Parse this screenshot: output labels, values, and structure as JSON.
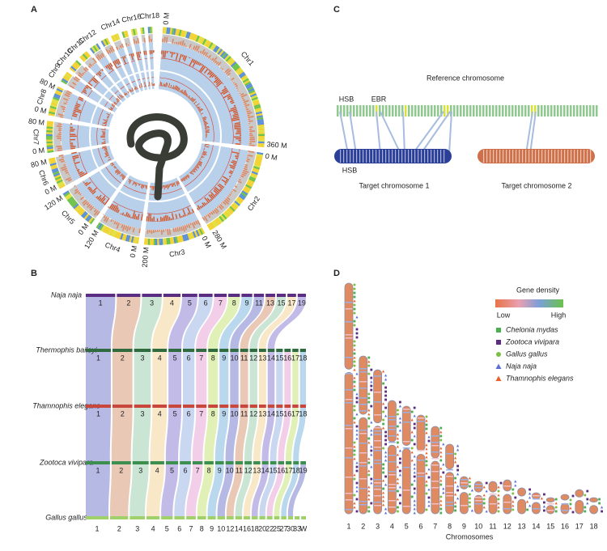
{
  "panel_labels": [
    "A",
    "B",
    "C",
    "D"
  ],
  "circos": {
    "chromosomes": [
      "Chr1",
      "Chr2",
      "Chr3",
      "Chr4",
      "Chr5",
      "Chr6",
      "Chr7",
      "Chr8",
      "Chr9",
      "Chr10",
      "Chr11",
      "Chr12",
      "Chr14",
      "Chr16",
      "Chr18"
    ],
    "ticks": [
      "0 M",
      "360 M",
      "0 M",
      "280 M",
      "0 M",
      "200 M",
      "0 M",
      "120 M",
      "0 M",
      "120 M",
      "0 M",
      "80 M",
      "0 M",
      "80 M",
      "0 M",
      "80 M"
    ]
  },
  "synteny": {
    "species": [
      {
        "name": "Naja naja",
        "chromosomes": [
          "1",
          "2",
          "3",
          "4",
          "5",
          "6",
          "7",
          "8",
          "9",
          "11",
          "13",
          "15",
          "17",
          "19"
        ]
      },
      {
        "name": "Thermophis baileyi",
        "chromosomes": [
          "1",
          "2",
          "3",
          "4",
          "5",
          "6",
          "7",
          "8",
          "9",
          "10",
          "11",
          "12",
          "13",
          "14",
          "15",
          "16",
          "17",
          "18"
        ]
      },
      {
        "name": "Thamnophis elegans",
        "chromosomes": [
          "1",
          "2",
          "3",
          "4",
          "5",
          "6",
          "7",
          "8",
          "9",
          "10",
          "11",
          "12",
          "13",
          "14",
          "15",
          "16",
          "17",
          "18"
        ]
      },
      {
        "name": "Zootoca vivipara",
        "chromosomes": [
          "1",
          "2",
          "3",
          "4",
          "5",
          "6",
          "7",
          "8",
          "9",
          "10",
          "11",
          "12",
          "13",
          "14",
          "15",
          "16",
          "17",
          "18",
          "19"
        ]
      },
      {
        "name": "Gallus gallus",
        "chromosomes": [
          "1",
          "2",
          "3",
          "4",
          "5",
          "6",
          "7",
          "8",
          "9",
          "10",
          "12",
          "14",
          "16",
          "18",
          "20",
          "22",
          "25",
          "27",
          "30",
          "33",
          "W"
        ]
      }
    ]
  },
  "schematic": {
    "reference": "Reference chromosome",
    "hsb_top": "HSB",
    "ebr": "EBR",
    "hsb_bottom": "HSB",
    "target_1": "Target chromosome 1",
    "target_2": "Target chromosome 2"
  },
  "karyotype": {
    "legend_title": "Gene density",
    "low": "Low",
    "high": "High",
    "species": [
      "Chelonia mydas",
      "Zootoca vivipara",
      "Gallus gallus",
      "Naja naja",
      "Thamnophis elegans"
    ],
    "chromosomes": [
      "1",
      "2",
      "3",
      "4",
      "5",
      "6",
      "7",
      "8",
      "9",
      "10",
      "11",
      "12",
      "13",
      "14",
      "15",
      "16",
      "17",
      "18"
    ],
    "axis_label": "Chromosomes"
  }
}
